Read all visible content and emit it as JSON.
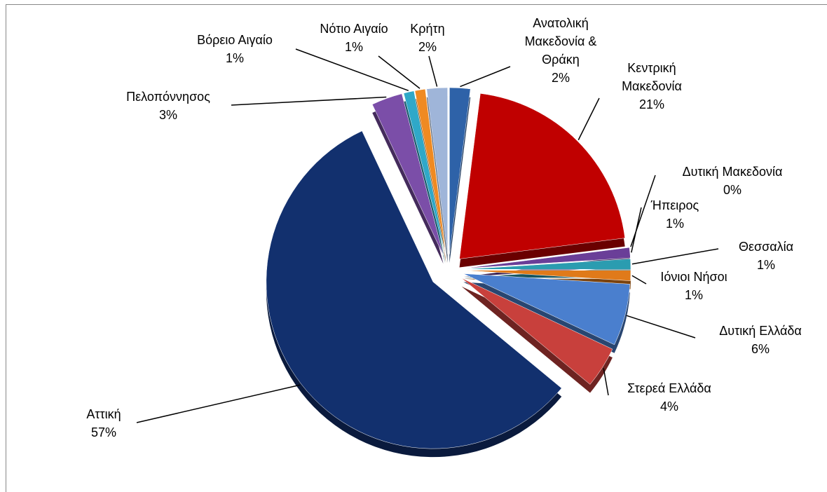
{
  "chart_data": {
    "type": "pie",
    "categories": [
      "Ανατολική Μακεδονία & Θράκη",
      "Κεντρική Μακεδονία",
      "Δυτική Μακεδονία",
      "Ήπειρος",
      "Θεσσαλία",
      "Ιόνιοι Νήσοι",
      "Δυτική Ελλάδα",
      "Στερεά Ελλάδα",
      "Αττική",
      "Πελοπόννησος",
      "Βόρειο Αιγαίο",
      "Νότιο Αιγαίο",
      "Κρήτη"
    ],
    "values": [
      2,
      21,
      0,
      1,
      1,
      1,
      6,
      4,
      57,
      3,
      1,
      1,
      2
    ],
    "value_labels": [
      "2%",
      "21%",
      "0%",
      "1%",
      "1%",
      "1%",
      "6%",
      "4%",
      "57%",
      "3%",
      "1%",
      "1%",
      "2%"
    ],
    "colors": [
      "#2e62a8",
      "#c00000",
      "#6aa23a",
      "#6a3e98",
      "#2b9cb0",
      "#e07a1a",
      "#4a7fce",
      "#c8403c",
      "#12306e",
      "#7b4ea8",
      "#2fa8c8",
      "#ef8a22",
      "#9fb5d9"
    ]
  }
}
